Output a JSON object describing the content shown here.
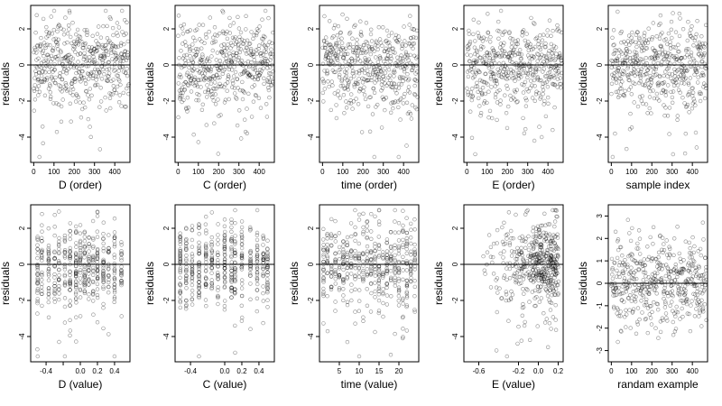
{
  "chart_data": [
    {
      "type": "scatter",
      "kind": "order",
      "xlabel": "D (order)",
      "ylabel": "residuals",
      "xlim": [
        -15,
        475
      ],
      "ylim": [
        -5.4,
        3.3
      ],
      "xticks": [
        0,
        100,
        200,
        300,
        400
      ],
      "xtick_labels": [
        "0",
        "100",
        "200",
        "300",
        "400"
      ],
      "yticks": [
        -4,
        -2,
        0,
        2
      ],
      "ytick_labels": [
        "-4",
        "-2",
        "0",
        "2"
      ],
      "hline": 0,
      "n": 470,
      "seed": 11
    },
    {
      "type": "scatter",
      "kind": "order",
      "xlabel": "C (order)",
      "ylabel": "residuals",
      "xlim": [
        -15,
        475
      ],
      "ylim": [
        -5.4,
        3.3
      ],
      "xticks": [
        0,
        100,
        200,
        300,
        400
      ],
      "xtick_labels": [
        "0",
        "100",
        "200",
        "300",
        "400"
      ],
      "yticks": [
        -4,
        -2,
        0,
        2
      ],
      "ytick_labels": [
        "-4",
        "-2",
        "0",
        "2"
      ],
      "hline": 0,
      "n": 470,
      "seed": 12
    },
    {
      "type": "scatter",
      "kind": "order",
      "xlabel": "time (order)",
      "ylabel": "residuals",
      "xlim": [
        -15,
        475
      ],
      "ylim": [
        -5.4,
        3.3
      ],
      "xticks": [
        0,
        100,
        200,
        300,
        400
      ],
      "xtick_labels": [
        "0",
        "100",
        "200",
        "300",
        "400"
      ],
      "yticks": [
        -4,
        -2,
        0,
        2
      ],
      "ytick_labels": [
        "-4",
        "-2",
        "0",
        "2"
      ],
      "hline": 0,
      "n": 470,
      "seed": 13
    },
    {
      "type": "scatter",
      "kind": "order",
      "xlabel": "E (order)",
      "ylabel": "residuals",
      "xlim": [
        -15,
        475
      ],
      "ylim": [
        -5.4,
        3.3
      ],
      "xticks": [
        0,
        100,
        200,
        300,
        400
      ],
      "xtick_labels": [
        "0",
        "100",
        "200",
        "300",
        "400"
      ],
      "yticks": [
        -4,
        -2,
        0,
        2
      ],
      "ytick_labels": [
        "-4",
        "-2",
        "0",
        "2"
      ],
      "hline": 0,
      "n": 470,
      "seed": 14
    },
    {
      "type": "scatter",
      "kind": "order",
      "xlabel": "sample index",
      "ylabel": "residuals",
      "xlim": [
        -15,
        475
      ],
      "ylim": [
        -5.4,
        3.3
      ],
      "xticks": [
        0,
        100,
        200,
        300,
        400
      ],
      "xtick_labels": [
        "0",
        "100",
        "200",
        "300",
        "400"
      ],
      "yticks": [
        -4,
        -2,
        0,
        2
      ],
      "ytick_labels": [
        "-4",
        "-2",
        "0",
        "2"
      ],
      "hline": 0,
      "n": 470,
      "seed": 15
    },
    {
      "type": "scatter",
      "kind": "value_grouped",
      "xlabel": "D (value)",
      "ylabel": "residuals",
      "xlim": [
        -0.58,
        0.58
      ],
      "ylim": [
        -5.4,
        3.3
      ],
      "xticks": [
        -0.4,
        -0.2,
        0.0,
        0.2,
        0.4
      ],
      "xtick_labels": [
        "-0.4",
        "",
        "0.0",
        "0.2",
        "0.4"
      ],
      "yticks": [
        -4,
        -2,
        0,
        2
      ],
      "ytick_labels": [
        "-4",
        "-2",
        "0",
        "2"
      ],
      "hline": 0,
      "n": 470,
      "seed": 21,
      "columns": [
        -0.5,
        -0.45,
        -0.37,
        -0.3,
        -0.25,
        -0.18,
        -0.12,
        -0.05,
        0.0,
        0.05,
        0.1,
        0.15,
        0.2,
        0.27,
        0.33,
        0.4,
        0.48
      ]
    },
    {
      "type": "scatter",
      "kind": "value_grouped",
      "xlabel": "C (value)",
      "ylabel": "residuals",
      "xlim": [
        -0.58,
        0.58
      ],
      "ylim": [
        -5.4,
        3.3
      ],
      "xticks": [
        -0.4,
        0.0,
        0.2,
        0.4
      ],
      "xtick_labels": [
        "-0.4",
        "0.0",
        "0.2",
        "0.4"
      ],
      "yticks": [
        -4,
        -2,
        0,
        2
      ],
      "ytick_labels": [
        "-4",
        "-2",
        "0",
        "2"
      ],
      "hline": 0,
      "n": 470,
      "seed": 22,
      "columns": [
        -0.52,
        -0.45,
        -0.38,
        -0.3,
        -0.22,
        -0.15,
        -0.08,
        0.0,
        0.08,
        0.12,
        0.2,
        0.3,
        0.38,
        0.45,
        0.5
      ]
    },
    {
      "type": "scatter",
      "kind": "value_grouped",
      "xlabel": "time (value)",
      "ylabel": "residuals",
      "xlim": [
        0,
        25
      ],
      "ylim": [
        -5.4,
        3.3
      ],
      "xticks": [
        5,
        10,
        15,
        20
      ],
      "xtick_labels": [
        "5",
        "10",
        "15",
        "20"
      ],
      "yticks": [
        -4,
        -2,
        0,
        2
      ],
      "ytick_labels": [
        "-4",
        "-2",
        "0",
        "2"
      ],
      "hline": 0,
      "n": 470,
      "seed": 23,
      "columns": [
        1,
        2,
        3,
        4,
        5,
        6,
        7,
        8,
        9,
        10,
        11,
        12,
        13,
        14,
        15,
        16,
        17,
        18,
        19,
        20,
        21,
        22,
        23,
        24
      ]
    },
    {
      "type": "scatter",
      "kind": "value_skewed",
      "xlabel": "E (value)",
      "ylabel": "residuals",
      "xlim": [
        -0.75,
        0.25
      ],
      "ylim": [
        -5.4,
        3.3
      ],
      "xticks": [
        -0.6,
        -0.2,
        0.0,
        0.2
      ],
      "xtick_labels": [
        "-0.6",
        "-0.2",
        "0.0",
        "0.2"
      ],
      "yticks": [
        -4,
        -2,
        0,
        2
      ],
      "ytick_labels": [
        "-4",
        "-2",
        "0",
        "2"
      ],
      "hline": 0,
      "n": 470,
      "seed": 24
    },
    {
      "type": "scatter",
      "kind": "order_normal",
      "xlabel": "randam example",
      "ylabel": "residuals",
      "xlim": [
        -15,
        475
      ],
      "ylim": [
        -3.5,
        3.5
      ],
      "xticks": [
        0,
        100,
        200,
        300,
        400
      ],
      "xtick_labels": [
        "0",
        "100",
        "200",
        "300",
        "400"
      ],
      "yticks": [
        -3,
        -2,
        -1,
        0,
        1,
        2,
        3
      ],
      "ytick_labels": [
        "-3",
        "-2",
        "-1",
        "0",
        "1",
        "2",
        "3"
      ],
      "hline": 0,
      "n": 470,
      "seed": 25
    }
  ]
}
